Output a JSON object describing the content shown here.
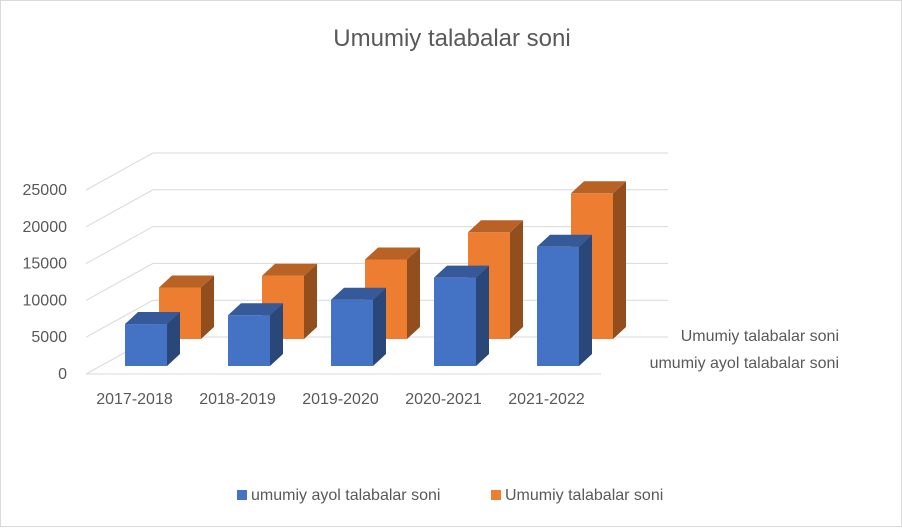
{
  "chart_data": {
    "type": "bar",
    "title": "Umumiy talabalar soni",
    "categories": [
      "2017-2018",
      "2018-2019",
      "2019-2020",
      "2020-2021",
      "2021-2022"
    ],
    "series": [
      {
        "name": "umumiy ayol talabalar soni",
        "values": [
          5700,
          6900,
          9000,
          12000,
          16200
        ],
        "color": "#4472c4"
      },
      {
        "name": "Umumiy talabalar soni",
        "values": [
          7000,
          8600,
          10800,
          14500,
          19800
        ],
        "color": "#ed7d31"
      }
    ],
    "yticks": [
      "0",
      "5000",
      "10000",
      "15000",
      "20000",
      "25000"
    ],
    "ylim": [
      0,
      25000
    ],
    "grid": true,
    "legend": "bottom",
    "depth_axis_labels": [
      "Umumiy talabalar soni",
      "umumiy ayol talabalar soni"
    ]
  }
}
